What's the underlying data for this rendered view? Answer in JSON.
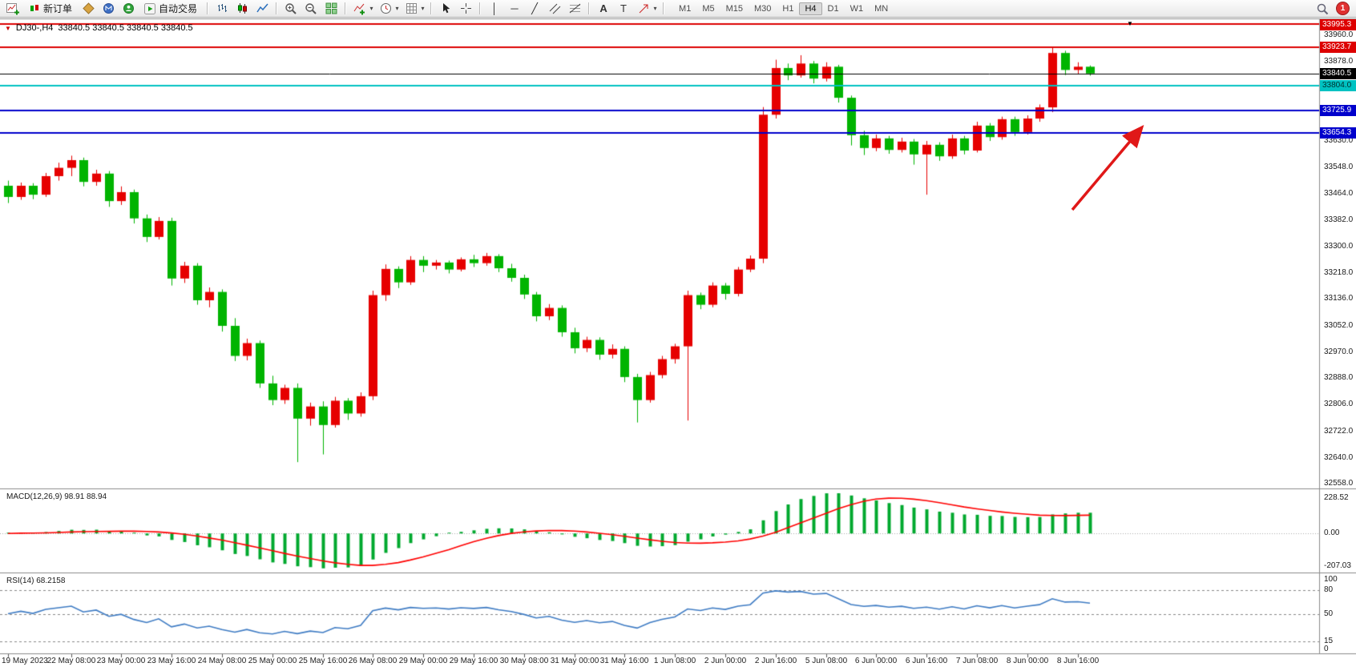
{
  "glyphs": {
    "down_triangle": "▼",
    "caret": "▾",
    "vline_tool": "│",
    "hline_tool": "─",
    "trendline_tool": "╱",
    "text_tool": "A",
    "label_tool": "T"
  },
  "toolbar": {
    "new_order_label": "新订单",
    "autotrading_label": "自动交易",
    "timeframes": [
      "M1",
      "M5",
      "M15",
      "M30",
      "H1",
      "H4",
      "D1",
      "W1",
      "MN"
    ],
    "active_timeframe": "H4",
    "notification_count": "1"
  },
  "chart": {
    "symbol_period": "DJ30-,H4",
    "ohlc_text": "33840.5 33840.5 33840.5 33840.5"
  },
  "colors": {
    "candle_up": "#e60000",
    "candle_down": "#00b400",
    "macd_hist": "#00a82e",
    "macd_signal": "#ff0000",
    "rsi_line": "#3f7cc4",
    "arrow": "#e01818",
    "border": "#8c8c8c"
  },
  "chart_data": {
    "type": "candlestick",
    "symbol": "DJ30-",
    "period": "H4",
    "candles": [
      [
        33490,
        33506,
        33436,
        33455
      ],
      [
        33455,
        33500,
        33446,
        33490
      ],
      [
        33490,
        33498,
        33448,
        33462
      ],
      [
        33462,
        33530,
        33455,
        33520
      ],
      [
        33520,
        33562,
        33506,
        33546
      ],
      [
        33546,
        33584,
        33520,
        33570
      ],
      [
        33570,
        33578,
        33488,
        33502
      ],
      [
        33502,
        33540,
        33490,
        33528
      ],
      [
        33528,
        33536,
        33424,
        33442
      ],
      [
        33442,
        33488,
        33430,
        33470
      ],
      [
        33470,
        33478,
        33372,
        33388
      ],
      [
        33388,
        33400,
        33314,
        33330
      ],
      [
        33330,
        33392,
        33322,
        33380
      ],
      [
        33380,
        33390,
        33178,
        33200
      ],
      [
        33200,
        33252,
        33186,
        33240
      ],
      [
        33240,
        33248,
        33118,
        33132
      ],
      [
        33132,
        33172,
        33110,
        33158
      ],
      [
        33158,
        33166,
        33034,
        33052
      ],
      [
        33052,
        33076,
        32942,
        32958
      ],
      [
        32958,
        33012,
        32944,
        32998
      ],
      [
        32998,
        33006,
        32858,
        32872
      ],
      [
        32872,
        32896,
        32804,
        32820
      ],
      [
        32820,
        32868,
        32808,
        32858
      ],
      [
        32858,
        32872,
        32626,
        32762
      ],
      [
        32762,
        32812,
        32740,
        32800
      ],
      [
        32800,
        32816,
        32650,
        32742
      ],
      [
        32742,
        32830,
        32734,
        32818
      ],
      [
        32818,
        32826,
        32758,
        32778
      ],
      [
        32778,
        32844,
        32768,
        32832
      ],
      [
        32832,
        33162,
        32820,
        33148
      ],
      [
        33148,
        33244,
        33130,
        33230
      ],
      [
        33230,
        33238,
        33170,
        33188
      ],
      [
        33188,
        33270,
        33180,
        33258
      ],
      [
        33258,
        33270,
        33220,
        33240
      ],
      [
        33240,
        33258,
        33228,
        33250
      ],
      [
        33250,
        33256,
        33216,
        33228
      ],
      [
        33228,
        33266,
        33222,
        33260
      ],
      [
        33260,
        33274,
        33236,
        33248
      ],
      [
        33248,
        33280,
        33240,
        33270
      ],
      [
        33270,
        33276,
        33220,
        33232
      ],
      [
        33232,
        33246,
        33190,
        33202
      ],
      [
        33202,
        33212,
        33136,
        33150
      ],
      [
        33150,
        33158,
        33066,
        33082
      ],
      [
        33082,
        33120,
        33070,
        33108
      ],
      [
        33108,
        33116,
        33018,
        33032
      ],
      [
        33032,
        33046,
        32966,
        32982
      ],
      [
        32982,
        33018,
        32970,
        33008
      ],
      [
        33008,
        33016,
        32946,
        32962
      ],
      [
        32962,
        32994,
        32950,
        32980
      ],
      [
        32980,
        32988,
        32876,
        32892
      ],
      [
        32892,
        32902,
        32750,
        32820
      ],
      [
        32820,
        32908,
        32812,
        32898
      ],
      [
        32898,
        32958,
        32888,
        32948
      ],
      [
        32948,
        32996,
        32934,
        32988
      ],
      [
        32988,
        33162,
        32756,
        33148
      ],
      [
        33148,
        33156,
        33104,
        33118
      ],
      [
        33118,
        33188,
        33110,
        33178
      ],
      [
        33178,
        33186,
        33134,
        33152
      ],
      [
        33152,
        33236,
        33144,
        33228
      ],
      [
        33228,
        33272,
        33220,
        33262
      ],
      [
        33262,
        33736,
        33248,
        33712
      ],
      [
        33712,
        33884,
        33700,
        33858
      ],
      [
        33858,
        33872,
        33820,
        33835
      ],
      [
        33835,
        33898,
        33828,
        33872
      ],
      [
        33872,
        33880,
        33810,
        33825
      ],
      [
        33825,
        33876,
        33816,
        33862
      ],
      [
        33862,
        33868,
        33750,
        33765
      ],
      [
        33765,
        33772,
        33616,
        33648
      ],
      [
        33648,
        33662,
        33586,
        33608
      ],
      [
        33608,
        33650,
        33598,
        33638
      ],
      [
        33638,
        33646,
        33590,
        33602
      ],
      [
        33602,
        33640,
        33594,
        33628
      ],
      [
        33628,
        33636,
        33556,
        33588
      ],
      [
        33588,
        33630,
        33462,
        33618
      ],
      [
        33618,
        33626,
        33568,
        33582
      ],
      [
        33582,
        33650,
        33574,
        33638
      ],
      [
        33638,
        33646,
        33588,
        33600
      ],
      [
        33600,
        33690,
        33594,
        33678
      ],
      [
        33678,
        33686,
        33630,
        33642
      ],
      [
        33642,
        33706,
        33634,
        33698
      ],
      [
        33698,
        33706,
        33646,
        33658
      ],
      [
        33658,
        33710,
        33650,
        33700
      ],
      [
        33700,
        33744,
        33690,
        33735
      ],
      [
        33735,
        33924,
        33720,
        33905
      ],
      [
        33905,
        33912,
        33836,
        33852
      ],
      [
        33852,
        33876,
        33840,
        33862
      ],
      [
        33862,
        33866,
        33834,
        33841
      ]
    ],
    "x_labels": [
      {
        "i": 0,
        "t": "19 May 2023"
      },
      {
        "i": 5,
        "t": "22 May 08:00"
      },
      {
        "i": 9,
        "t": "23 May 00:00"
      },
      {
        "i": 13,
        "t": "23 May 16:00"
      },
      {
        "i": 17,
        "t": "24 May 08:00"
      },
      {
        "i": 21,
        "t": "25 May 00:00"
      },
      {
        "i": 25,
        "t": "25 May 16:00"
      },
      {
        "i": 29,
        "t": "26 May 08:00"
      },
      {
        "i": 33,
        "t": "29 May 00:00"
      },
      {
        "i": 37,
        "t": "29 May 16:00"
      },
      {
        "i": 41,
        "t": "30 May 08:00"
      },
      {
        "i": 45,
        "t": "31 May 00:00"
      },
      {
        "i": 49,
        "t": "31 May 16:00"
      },
      {
        "i": 53,
        "t": "1 Jun 08:00"
      },
      {
        "i": 57,
        "t": "2 Jun 00:00"
      },
      {
        "i": 61,
        "t": "2 Jun 16:00"
      },
      {
        "i": 65,
        "t": "5 Jun 08:00"
      },
      {
        "i": 69,
        "t": "6 Jun 00:00"
      },
      {
        "i": 73,
        "t": "6 Jun 16:00"
      },
      {
        "i": 77,
        "t": "7 Jun 08:00"
      },
      {
        "i": 81,
        "t": "8 Jun 00:00"
      },
      {
        "i": 85,
        "t": "8 Jun 16:00"
      }
    ],
    "price_ticks": [
      {
        "v": 33960,
        "t": "33960.0"
      },
      {
        "v": 33878,
        "t": "33878.0"
      },
      {
        "v": 33712,
        "t": "33712.0"
      },
      {
        "v": 33630,
        "t": "33630.0"
      },
      {
        "v": 33548,
        "t": "33548.0"
      },
      {
        "v": 33464,
        "t": "33464.0"
      },
      {
        "v": 33382,
        "t": "33382.0"
      },
      {
        "v": 33300,
        "t": "33300.0"
      },
      {
        "v": 33218,
        "t": "33218.0"
      },
      {
        "v": 33136,
        "t": "33136.0"
      },
      {
        "v": 33052,
        "t": "33052.0"
      },
      {
        "v": 32970,
        "t": "32970.0"
      },
      {
        "v": 32888,
        "t": "32888.0"
      },
      {
        "v": 32806,
        "t": "32806.0"
      },
      {
        "v": 32722,
        "t": "32722.0"
      },
      {
        "v": 32640,
        "t": "32640.0"
      },
      {
        "v": 32558,
        "t": "32558.0"
      }
    ],
    "hlines": [
      {
        "price": 33995.3,
        "label": "33995.3",
        "color": "#dd0000",
        "text_color": "#ffffff",
        "width": 2
      },
      {
        "price": 33923.7,
        "label": "33923.7",
        "color": "#dd0000",
        "text_color": "#ffffff",
        "width": 2
      },
      {
        "price": 33840.5,
        "label": "33840.5",
        "color": "#000000",
        "text_color": "#ffffff",
        "width": 1
      },
      {
        "price": 33804.0,
        "label": "33804.0",
        "color": "#00c2c2",
        "text_color": "#00312f",
        "width": 2
      },
      {
        "price": 33725.9,
        "label": "33725.9",
        "color": "#0000cc",
        "text_color": "#ffffff",
        "width": 2
      },
      {
        "price": 33654.3,
        "label": "33654.3",
        "color": "#0000cc",
        "text_color": "#ffffff",
        "width": 2
      }
    ],
    "macd": {
      "label": "MACD(12,26,9) 98.91 88.94",
      "fast": 12,
      "slow": 26,
      "signal_period": 9,
      "main_value": 98.91,
      "signal_value": 88.94,
      "axis": {
        "top": "228.52",
        "zero": "0.00",
        "bottom": "-207.03"
      }
    },
    "rsi": {
      "label": "RSI(14) 68.2158",
      "period": 14,
      "value": 68.2158,
      "axis": [
        {
          "v": 100,
          "t": "100",
          "dashed": false
        },
        {
          "v": 80,
          "t": "80",
          "dashed": true
        },
        {
          "v": 50,
          "t": "50",
          "dashed": true
        },
        {
          "v": 15,
          "t": "15",
          "dashed": true
        },
        {
          "v": 0,
          "t": "0",
          "dashed": false
        }
      ]
    }
  }
}
